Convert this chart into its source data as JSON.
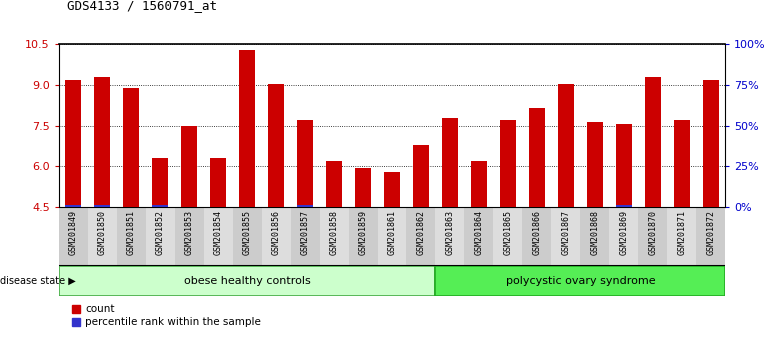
{
  "title": "GDS4133 / 1560791_at",
  "samples": [
    "GSM201849",
    "GSM201850",
    "GSM201851",
    "GSM201852",
    "GSM201853",
    "GSM201854",
    "GSM201855",
    "GSM201856",
    "GSM201857",
    "GSM201858",
    "GSM201859",
    "GSM201861",
    "GSM201862",
    "GSM201863",
    "GSM201864",
    "GSM201865",
    "GSM201866",
    "GSM201867",
    "GSM201868",
    "GSM201869",
    "GSM201870",
    "GSM201871",
    "GSM201872"
  ],
  "count_values": [
    9.2,
    9.3,
    8.9,
    6.3,
    7.5,
    6.3,
    10.3,
    9.05,
    7.7,
    6.2,
    5.95,
    5.8,
    6.8,
    7.8,
    6.2,
    7.7,
    8.15,
    9.05,
    7.65,
    7.55,
    9.3,
    7.7,
    9.2
  ],
  "percentile_has_blue": [
    true,
    true,
    false,
    true,
    false,
    false,
    false,
    false,
    true,
    false,
    false,
    false,
    false,
    false,
    false,
    false,
    false,
    false,
    false,
    true,
    false,
    false,
    false
  ],
  "group1_label": "obese healthy controls",
  "group2_label": "polycystic ovary syndrome",
  "group1_count": 13,
  "group2_count": 10,
  "ymin": 4.5,
  "ymax": 10.5,
  "yticks": [
    4.5,
    6.0,
    7.5,
    9.0,
    10.5
  ],
  "right_ytick_positions": [
    0,
    25,
    50,
    75,
    100
  ],
  "right_ylabels": [
    "0%",
    "25%",
    "50%",
    "75%",
    "100%"
  ],
  "bar_color_red": "#cc0000",
  "bar_color_blue": "#3333cc",
  "group1_bg": "#ccffcc",
  "group2_bg": "#55ee55",
  "disease_state_label": "disease state",
  "legend_count_label": "count",
  "legend_percentile_label": "percentile rank within the sample",
  "bar_width": 0.55,
  "tick_label_color": "#cc0000",
  "right_tick_color": "#0000cc",
  "title_fontsize": 9,
  "tick_fontsize": 6,
  "group_fontsize": 8,
  "legend_fontsize": 7.5,
  "blue_bar_height": 0.08
}
